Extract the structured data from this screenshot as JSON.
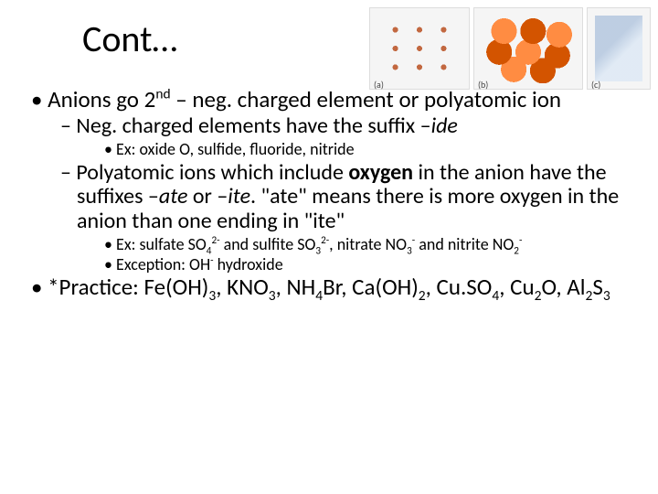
{
  "title": "Cont…",
  "images": {
    "a_label": "(a)",
    "b_label": "(b)",
    "c_label": "(c)"
  },
  "bullets": {
    "anions_pre": "Anions go 2",
    "anions_sup": "nd",
    "anions_post": " – neg. charged element or polyatomic ion",
    "neg_pre": "Neg. charged elements have the suffix –",
    "neg_ital": "ide",
    "ex1": "Ex: oxide O, sulfide, fluoride, nitride",
    "poly_pre": " Polyatomic ions which include ",
    "poly_bold": "oxygen",
    "poly_mid1": " in the anion have the suffixes –",
    "poly_ital1": "ate",
    "poly_mid2": " or –",
    "poly_ital2": "ite",
    "poly_post": ".  \"ate\" means there is more oxygen in the anion than one ending in \"ite\"",
    "ex2_1": "Ex: sulfate SO",
    "ex2_2": " and sulfite SO",
    "ex2_3": ", nitrate NO",
    "ex2_4": " and nitrite NO",
    "exc_pre": "Exception: OH",
    "exc_post": " hydroxide",
    "prac_pre": "*Practice: Fe(OH)",
    "prac_1": ", KNO",
    "prac_2": ", NH",
    "prac_3": "Br, Ca(OH)",
    "prac_4": ", Cu.SO",
    "prac_5": ", Cu",
    "prac_6": "O, Al",
    "prac_7": "S"
  },
  "subs": {
    "n4": "4",
    "n3": "3",
    "n2": "2"
  },
  "sups": {
    "neg": "-",
    "two_neg": "2-"
  }
}
